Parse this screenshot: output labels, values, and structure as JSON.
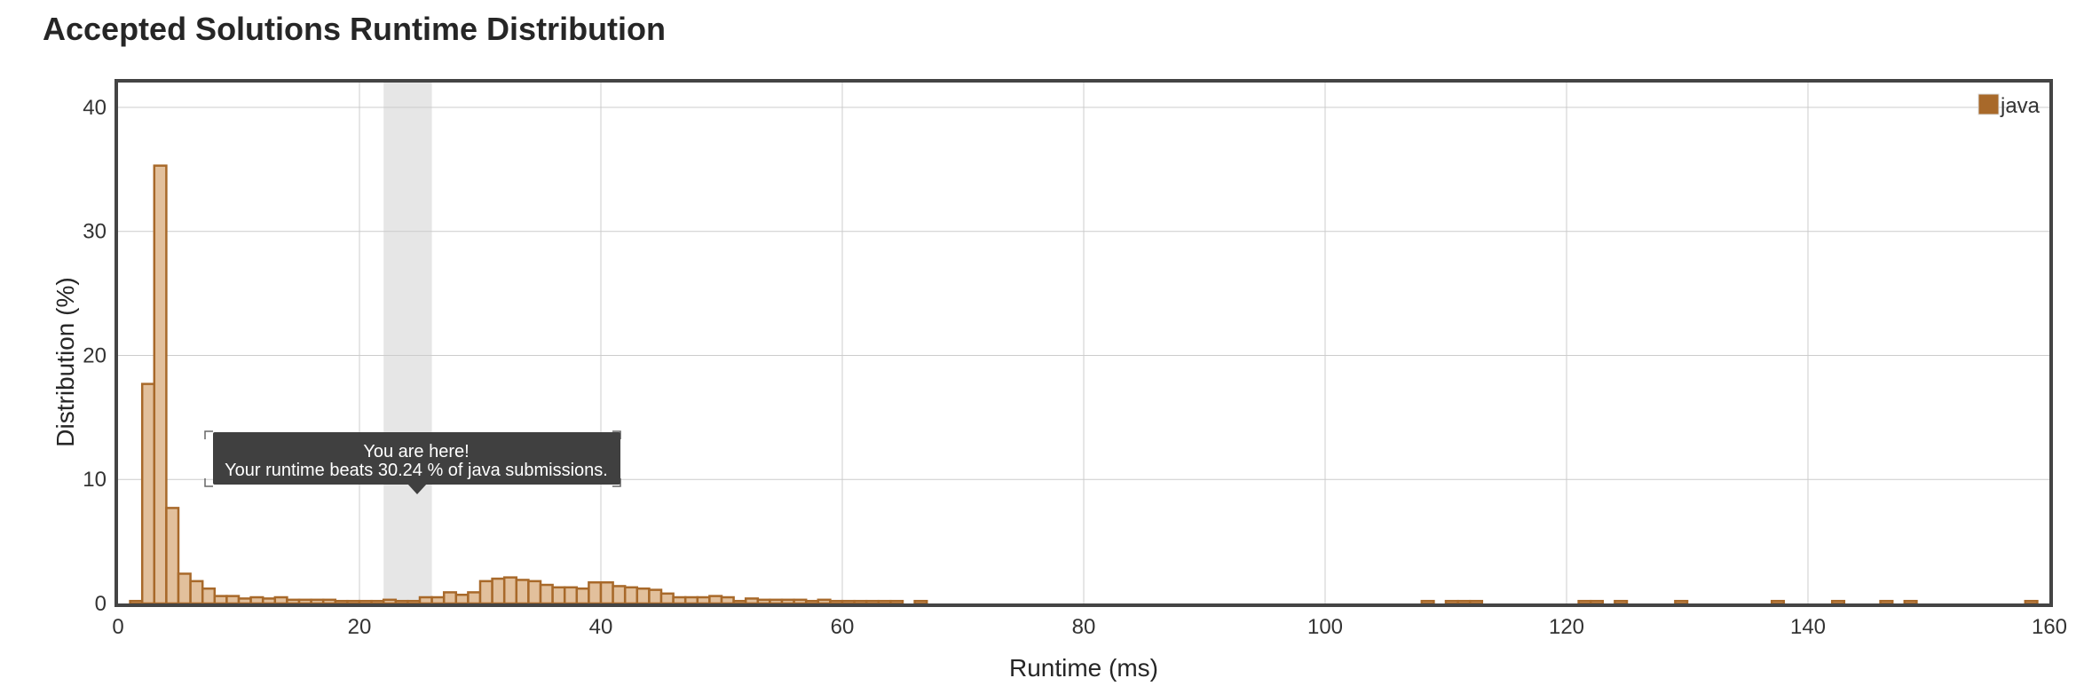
{
  "page": {
    "title": "Accepted Solutions Runtime Distribution"
  },
  "chart_data": {
    "type": "bar",
    "xlabel": "Runtime (ms)",
    "ylabel": "Distribution (%)",
    "xlim": [
      0,
      160
    ],
    "ylim": [
      0,
      42
    ],
    "x_ticks": [
      0,
      20,
      40,
      60,
      80,
      100,
      120,
      140,
      160
    ],
    "y_ticks": [
      0,
      10,
      20,
      30,
      40
    ],
    "grid": true,
    "legend_position": "top-right",
    "bin_width": 1,
    "series": [
      {
        "name": "java",
        "color": "#a8692a",
        "fill": "#e2c09c",
        "x": [
          1,
          2,
          3,
          4,
          5,
          6,
          7,
          8,
          9,
          10,
          11,
          12,
          13,
          14,
          15,
          16,
          17,
          18,
          19,
          20,
          21,
          22,
          23,
          24,
          25,
          26,
          27,
          28,
          29,
          30,
          31,
          32,
          33,
          34,
          35,
          36,
          37,
          38,
          39,
          40,
          41,
          42,
          43,
          44,
          45,
          46,
          47,
          48,
          49,
          50,
          51,
          52,
          53,
          54,
          55,
          56,
          57,
          58,
          59,
          60,
          61,
          62,
          63,
          64,
          66,
          108,
          110,
          111,
          112,
          121,
          122,
          124,
          129,
          137,
          142,
          146,
          148,
          158
        ],
        "values": [
          0.2,
          17.7,
          35.3,
          7.7,
          2.4,
          1.8,
          1.2,
          0.6,
          0.6,
          0.4,
          0.5,
          0.4,
          0.5,
          0.3,
          0.3,
          0.3,
          0.3,
          0.2,
          0.2,
          0.2,
          0.2,
          0.3,
          0.2,
          0.2,
          0.5,
          0.5,
          0.9,
          0.7,
          0.9,
          1.8,
          2.0,
          2.1,
          1.9,
          1.8,
          1.5,
          1.3,
          1.3,
          1.2,
          1.7,
          1.7,
          1.4,
          1.3,
          1.2,
          1.1,
          0.8,
          0.5,
          0.5,
          0.5,
          0.6,
          0.5,
          0.2,
          0.4,
          0.3,
          0.3,
          0.3,
          0.3,
          0.2,
          0.3,
          0.2,
          0.2,
          0.2,
          0.2,
          0.2,
          0.2,
          0.2,
          0.2,
          0.2,
          0.2,
          0.2,
          0.2,
          0.2,
          0.2,
          0.2,
          0.2,
          0.2,
          0.2,
          0.2,
          0.2
        ]
      }
    ],
    "highlight": {
      "x_range": [
        22,
        26
      ],
      "color": "#e6e6e6"
    },
    "tooltip": {
      "line1": "You are here!",
      "line2": "Your runtime beats 30.24 % of java submissions."
    }
  }
}
